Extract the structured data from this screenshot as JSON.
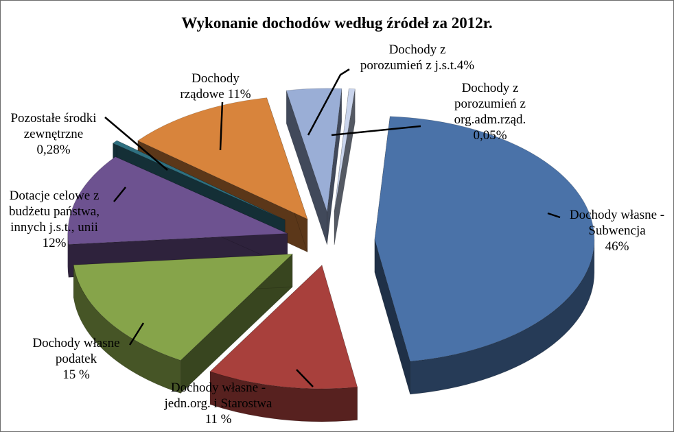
{
  "chart_data": {
    "type": "pie",
    "title": "Wykonanie  dochodów według źródeł za 2012r.",
    "start_angle_deg": -86,
    "direction": "clockwise",
    "slices": [
      {
        "label_lines": [
          "Dochody własne -",
          "Subwencja",
          "46%"
        ],
        "value": 46,
        "color": "#4a72a8"
      },
      {
        "label_lines": [
          "Dochody własne -",
          "jedn.org. i Starostwa",
          "11 %"
        ],
        "value": 11,
        "color": "#a8403c"
      },
      {
        "label_lines": [
          "Dochody własne",
          "podatek",
          "15 %"
        ],
        "value": 15,
        "color": "#86a44a"
      },
      {
        "label_lines": [
          "Dotacje celowe z",
          "budżetu państwa,",
          "innych j.s.t., unii",
          "12%"
        ],
        "value": 12,
        "color": "#6d5290"
      },
      {
        "label_lines": [
          "Pozostałe środki",
          "zewnętrzne",
          "0,28%"
        ],
        "value": 0.28,
        "color": "#2f7080"
      },
      {
        "label_lines": [
          "Dochody",
          "rządowe 11%"
        ],
        "value": 11,
        "color": "#d8843c"
      },
      {
        "label_lines": [
          "Dochody z",
          "porozumień z j.s.t.4%"
        ],
        "value": 4,
        "color": "#9aaed6"
      },
      {
        "label_lines": [
          "Dochody z",
          "porozumień z",
          "org.adm.rząd.",
          "0,05%"
        ],
        "value": 0.05,
        "color": "#c9d4ec"
      }
    ]
  }
}
